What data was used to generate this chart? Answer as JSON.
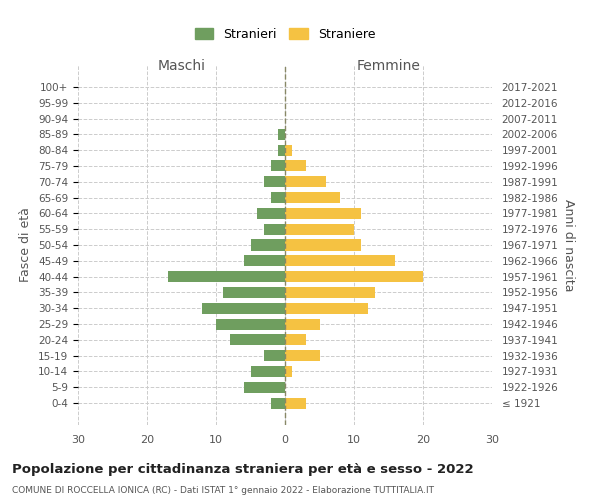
{
  "age_groups": [
    "100+",
    "95-99",
    "90-94",
    "85-89",
    "80-84",
    "75-79",
    "70-74",
    "65-69",
    "60-64",
    "55-59",
    "50-54",
    "45-49",
    "40-44",
    "35-39",
    "30-34",
    "25-29",
    "20-24",
    "15-19",
    "10-14",
    "5-9",
    "0-4"
  ],
  "birth_years": [
    "≤ 1921",
    "1922-1926",
    "1927-1931",
    "1932-1936",
    "1937-1941",
    "1942-1946",
    "1947-1951",
    "1952-1956",
    "1957-1961",
    "1962-1966",
    "1967-1971",
    "1972-1976",
    "1977-1981",
    "1982-1986",
    "1987-1991",
    "1992-1996",
    "1997-2001",
    "2002-2006",
    "2007-2011",
    "2012-2016",
    "2017-2021"
  ],
  "males": [
    0,
    0,
    0,
    -1,
    -1,
    -2,
    -3,
    -2,
    -4,
    -3,
    -5,
    -6,
    -17,
    -9,
    -12,
    -10,
    -8,
    -3,
    -5,
    -6,
    -2
  ],
  "females": [
    0,
    0,
    0,
    0,
    1,
    3,
    6,
    8,
    11,
    10,
    11,
    16,
    20,
    13,
    12,
    5,
    3,
    5,
    1,
    0,
    3
  ],
  "male_color": "#6f9e5f",
  "female_color": "#f5c242",
  "title": "Popolazione per cittadinanza straniera per età e sesso - 2022",
  "subtitle": "COMUNE DI ROCCELLA IONICA (RC) - Dati ISTAT 1° gennaio 2022 - Elaborazione TUTTITALIA.IT",
  "ylabel_left": "Fasce di età",
  "ylabel_right": "Anni di nascita",
  "xlabel_left": "Maschi",
  "xlabel_right": "Femmine",
  "legend_male": "Stranieri",
  "legend_female": "Straniere",
  "xlim": [
    -30,
    30
  ],
  "xticks": [
    -30,
    -20,
    -10,
    0,
    10,
    20,
    30
  ],
  "xtick_labels": [
    "30",
    "20",
    "10",
    "0",
    "10",
    "20",
    "30"
  ],
  "background_color": "#ffffff",
  "grid_color": "#cccccc"
}
